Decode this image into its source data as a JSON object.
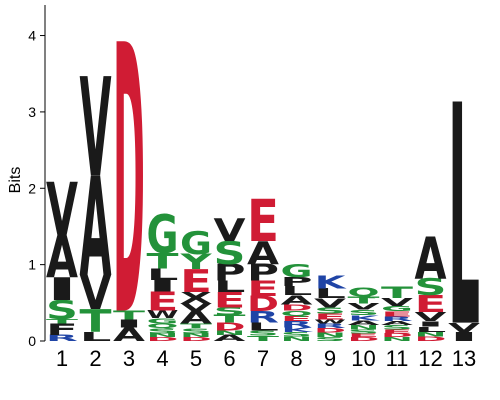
{
  "chart_data": {
    "type": "sequence-logo",
    "ylabel": "Bits",
    "ylim": [
      0,
      4.4
    ],
    "yticks": [
      "0",
      "1",
      "2",
      "3",
      "4"
    ],
    "categories": [
      "1",
      "2",
      "3",
      "4",
      "5",
      "6",
      "7",
      "8",
      "9",
      "10",
      "11",
      "12",
      "13"
    ],
    "colors": {
      "hydrophobic": "#1a1a1a",
      "acidic": "#d01c34",
      "polar": "#23923a",
      "basic": "#1f44a6"
    },
    "letter_groups": {
      "A": "hydrophobic",
      "V": "hydrophobic",
      "L": "hydrophobic",
      "I": "hydrophobic",
      "F": "hydrophobic",
      "P": "hydrophobic",
      "M": "hydrophobic",
      "W": "hydrophobic",
      "D": "acidic",
      "E": "acidic",
      "S": "polar",
      "T": "polar",
      "G": "polar",
      "Y": "polar",
      "Q": "polar",
      "N": "polar",
      "C": "polar",
      "K": "basic",
      "R": "basic",
      "H": "basic"
    },
    "positions": [
      {
        "position": "1",
        "stack": [
          [
            "R",
            0.08
          ],
          [
            "F",
            0.15
          ],
          [
            "T",
            0.06
          ],
          [
            "S",
            0.25
          ],
          [
            "I",
            0.3
          ],
          [
            "A",
            0.55
          ],
          [
            "V",
            0.7
          ]
        ]
      },
      {
        "position": "2",
        "stack": [
          [
            "L",
            0.12
          ],
          [
            "T",
            0.3
          ],
          [
            "V",
            0.45
          ],
          [
            "A",
            1.3
          ],
          [
            "V",
            1.3
          ]
        ]
      },
      {
        "position": "3",
        "stack": [
          [
            "A",
            0.18
          ],
          [
            "I",
            0.1
          ],
          [
            "T",
            0.12
          ],
          [
            "D",
            3.53
          ]
        ]
      },
      {
        "position": "4",
        "stack": [
          [
            "D",
            0.05
          ],
          [
            "N",
            0.05
          ],
          [
            "S",
            0.07
          ],
          [
            "Q",
            0.06
          ],
          [
            "G",
            0.07
          ],
          [
            "W",
            0.1
          ],
          [
            "E",
            0.25
          ],
          [
            "I",
            0.15
          ],
          [
            "L",
            0.15
          ],
          [
            "T",
            0.2
          ],
          [
            "G",
            0.5
          ]
        ]
      },
      {
        "position": "5",
        "stack": [
          [
            "D",
            0.05
          ],
          [
            "N",
            0.05
          ],
          [
            "S",
            0.07
          ],
          [
            "T",
            0.06
          ],
          [
            "A",
            0.16
          ],
          [
            "V",
            0.1
          ],
          [
            "X",
            0.15
          ],
          [
            "E",
            0.3
          ],
          [
            "Y",
            0.2
          ],
          [
            "G",
            0.3
          ]
        ]
      },
      {
        "position": "6",
        "stack": [
          [
            "A",
            0.08
          ],
          [
            "N",
            0.06
          ],
          [
            "D",
            0.1
          ],
          [
            "T",
            0.1
          ],
          [
            "S",
            0.1
          ],
          [
            "E",
            0.2
          ],
          [
            "L",
            0.15
          ],
          [
            "P",
            0.22
          ],
          [
            "S",
            0.3
          ],
          [
            "V",
            0.3
          ]
        ]
      },
      {
        "position": "7",
        "stack": [
          [
            "T",
            0.07
          ],
          [
            "S",
            0.07
          ],
          [
            "L",
            0.1
          ],
          [
            "R",
            0.15
          ],
          [
            "D",
            0.2
          ],
          [
            "E",
            0.2
          ],
          [
            "P",
            0.22
          ],
          [
            "A",
            0.3
          ],
          [
            "E",
            0.55
          ]
        ]
      },
      {
        "position": "8",
        "stack": [
          [
            "N",
            0.06
          ],
          [
            "S",
            0.06
          ],
          [
            "K",
            0.06
          ],
          [
            "R",
            0.08
          ],
          [
            "E",
            0.07
          ],
          [
            "Q",
            0.07
          ],
          [
            "D",
            0.08
          ],
          [
            "A",
            0.12
          ],
          [
            "L",
            0.12
          ],
          [
            "P",
            0.12
          ],
          [
            "G",
            0.17
          ]
        ]
      },
      {
        "position": "9",
        "stack": [
          [
            "S",
            0.05
          ],
          [
            "N",
            0.06
          ],
          [
            "D",
            0.06
          ],
          [
            "R",
            0.06
          ],
          [
            "W",
            0.05
          ],
          [
            "E",
            0.08
          ],
          [
            "S",
            0.08
          ],
          [
            "V",
            0.12
          ],
          [
            "L",
            0.13
          ],
          [
            "K",
            0.17
          ]
        ]
      },
      {
        "position": "10",
        "stack": [
          [
            "D",
            0.05
          ],
          [
            "E",
            0.05
          ],
          [
            "S",
            0.05
          ],
          [
            "N",
            0.06
          ],
          [
            "A",
            0.06
          ],
          [
            "K",
            0.07
          ],
          [
            "S",
            0.07
          ],
          [
            "V",
            0.08
          ],
          [
            "T",
            0.09
          ],
          [
            "Q",
            0.12
          ]
        ]
      },
      {
        "position": "11",
        "stack": [
          [
            "N",
            0.05
          ],
          [
            "D",
            0.05
          ],
          [
            "E",
            0.05
          ],
          [
            "S",
            0.06
          ],
          [
            "A",
            0.05
          ],
          [
            "R",
            0.06
          ],
          [
            "E",
            0.07
          ],
          [
            "G",
            0.07
          ],
          [
            "V",
            0.1
          ],
          [
            "T",
            0.15
          ]
        ]
      },
      {
        "position": "12",
        "stack": [
          [
            "D",
            0.06
          ],
          [
            "N",
            0.06
          ],
          [
            "L",
            0.07
          ],
          [
            "I",
            0.07
          ],
          [
            "V",
            0.12
          ],
          [
            "E",
            0.22
          ],
          [
            "S",
            0.22
          ],
          [
            "A",
            0.55
          ]
        ]
      },
      {
        "position": "13",
        "stack": [
          [
            "I",
            0.12
          ],
          [
            "V",
            0.12
          ],
          [
            "L",
            2.9
          ]
        ]
      }
    ]
  }
}
